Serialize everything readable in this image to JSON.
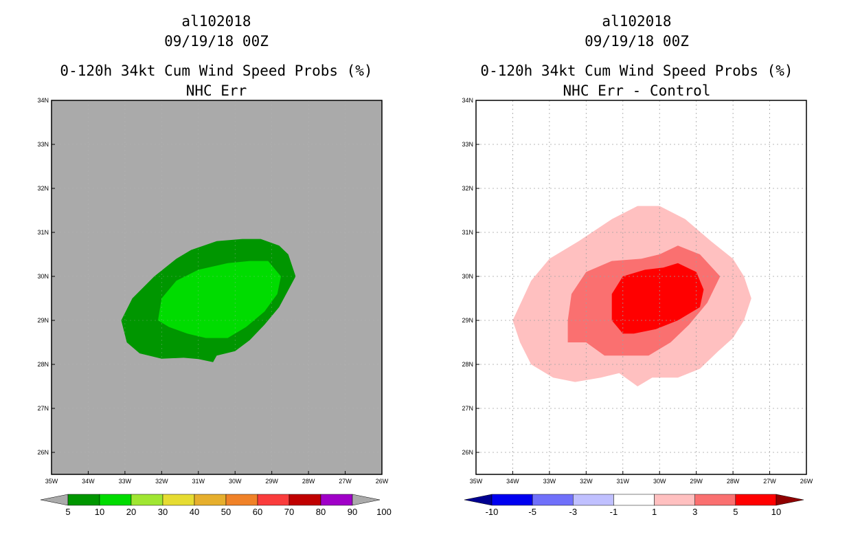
{
  "chart_data": [
    {
      "type": "filled-contour-map",
      "title_lines": [
        "al102018",
        "09/19/18 00Z",
        "0-120h 34kt Cum Wind Speed Probs (%)",
        "NHC Err"
      ],
      "background_color": "#aaaaaa",
      "x_ticks": [
        "35W",
        "34W",
        "33W",
        "32W",
        "31W",
        "30W",
        "29W",
        "28W",
        "27W",
        "26W"
      ],
      "y_ticks": [
        "34N",
        "33N",
        "32N",
        "31N",
        "30N",
        "29N",
        "28N",
        "27N",
        "26N"
      ],
      "lon_range": [
        -35,
        -26
      ],
      "lat_range": [
        25.5,
        34
      ],
      "grid": false,
      "contours": [
        {
          "level": 5,
          "color": "#009600",
          "polygon": [
            [
              -33.1,
              29.0
            ],
            [
              -32.8,
              29.5
            ],
            [
              -32.2,
              30.0
            ],
            [
              -31.6,
              30.4
            ],
            [
              -31.2,
              30.6
            ],
            [
              -30.5,
              30.8
            ],
            [
              -29.8,
              30.85
            ],
            [
              -29.3,
              30.85
            ],
            [
              -28.8,
              30.7
            ],
            [
              -28.55,
              30.5
            ],
            [
              -28.35,
              30.0
            ],
            [
              -28.8,
              29.3
            ],
            [
              -29.2,
              28.9
            ],
            [
              -29.6,
              28.55
            ],
            [
              -30.0,
              28.3
            ],
            [
              -30.5,
              28.2
            ],
            [
              -30.6,
              28.05
            ],
            [
              -31.0,
              28.12
            ],
            [
              -31.4,
              28.15
            ],
            [
              -32.0,
              28.13
            ],
            [
              -32.6,
              28.25
            ],
            [
              -32.95,
              28.5
            ],
            [
              -33.1,
              29.0
            ]
          ]
        },
        {
          "level": 10,
          "color": "#00dc00",
          "polygon": [
            [
              -32.1,
              29.0
            ],
            [
              -32.0,
              29.5
            ],
            [
              -31.6,
              29.9
            ],
            [
              -31.0,
              30.15
            ],
            [
              -30.2,
              30.3
            ],
            [
              -29.6,
              30.35
            ],
            [
              -29.1,
              30.35
            ],
            [
              -28.75,
              30.0
            ],
            [
              -28.85,
              29.6
            ],
            [
              -29.2,
              29.2
            ],
            [
              -29.7,
              28.85
            ],
            [
              -30.2,
              28.6
            ],
            [
              -30.8,
              28.6
            ],
            [
              -31.3,
              28.7
            ],
            [
              -31.8,
              28.85
            ],
            [
              -32.1,
              29.0
            ]
          ]
        }
      ],
      "colorbar": {
        "labels": [
          "5",
          "10",
          "20",
          "30",
          "40",
          "50",
          "60",
          "70",
          "80",
          "90",
          "100"
        ],
        "colors": [
          "#009600",
          "#00dc00",
          "#a0e632",
          "#e6dc32",
          "#e6af2d",
          "#f08228",
          "#fa3c3c",
          "#c00000",
          "#a000c8"
        ],
        "under_color": "#aaaaaa",
        "over_color": "#aaaaaa"
      }
    },
    {
      "type": "filled-contour-map",
      "title_lines": [
        "al102018",
        "09/19/18 00Z",
        "0-120h 34kt Cum Wind Speed Probs (%)",
        "NHC Err - Control"
      ],
      "background_color": "#ffffff",
      "x_ticks": [
        "35W",
        "34W",
        "33W",
        "32W",
        "31W",
        "30W",
        "29W",
        "28W",
        "27W",
        "26W"
      ],
      "y_ticks": [
        "34N",
        "33N",
        "32N",
        "31N",
        "30N",
        "29N",
        "28N",
        "27N",
        "26N"
      ],
      "lon_range": [
        -35,
        -26
      ],
      "lat_range": [
        25.5,
        34
      ],
      "grid": true,
      "contours": [
        {
          "level": 1,
          "color": "#ffc0c0",
          "polygon": [
            [
              -34.0,
              29.0
            ],
            [
              -33.5,
              29.9
            ],
            [
              -33.0,
              30.4
            ],
            [
              -32.2,
              30.8
            ],
            [
              -31.3,
              31.3
            ],
            [
              -30.6,
              31.6
            ],
            [
              -30.0,
              31.6
            ],
            [
              -29.3,
              31.3
            ],
            [
              -28.6,
              30.8
            ],
            [
              -28.0,
              30.4
            ],
            [
              -27.7,
              30.0
            ],
            [
              -27.5,
              29.5
            ],
            [
              -27.7,
              29.0
            ],
            [
              -28.0,
              28.6
            ],
            [
              -28.4,
              28.3
            ],
            [
              -28.9,
              27.9
            ],
            [
              -29.5,
              27.7
            ],
            [
              -30.2,
              27.7
            ],
            [
              -30.6,
              27.5
            ],
            [
              -31.1,
              27.8
            ],
            [
              -31.6,
              27.7
            ],
            [
              -32.3,
              27.6
            ],
            [
              -32.9,
              27.7
            ],
            [
              -33.5,
              28.0
            ],
            [
              -33.8,
              28.5
            ],
            [
              -34.0,
              29.0
            ]
          ]
        },
        {
          "level": 3,
          "color": "#fa7070",
          "polygon": [
            [
              -32.5,
              29.0
            ],
            [
              -32.4,
              29.6
            ],
            [
              -32.0,
              30.1
            ],
            [
              -31.3,
              30.35
            ],
            [
              -30.5,
              30.4
            ],
            [
              -30.0,
              30.5
            ],
            [
              -29.5,
              30.7
            ],
            [
              -28.9,
              30.5
            ],
            [
              -28.35,
              30.0
            ],
            [
              -28.7,
              29.4
            ],
            [
              -29.2,
              28.9
            ],
            [
              -29.7,
              28.5
            ],
            [
              -30.3,
              28.2
            ],
            [
              -30.9,
              28.2
            ],
            [
              -31.5,
              28.2
            ],
            [
              -32.0,
              28.5
            ],
            [
              -32.5,
              28.5
            ],
            [
              -32.5,
              29.0
            ]
          ]
        },
        {
          "level": 5,
          "color": "#ff0000",
          "polygon": [
            [
              -31.3,
              29.0
            ],
            [
              -31.3,
              29.6
            ],
            [
              -31.0,
              30.0
            ],
            [
              -30.4,
              30.15
            ],
            [
              -29.9,
              30.2
            ],
            [
              -29.5,
              30.3
            ],
            [
              -29.0,
              30.1
            ],
            [
              -28.8,
              29.7
            ],
            [
              -28.9,
              29.3
            ],
            [
              -29.5,
              29.0
            ],
            [
              -30.1,
              28.8
            ],
            [
              -30.7,
              28.7
            ],
            [
              -31.0,
              28.7
            ],
            [
              -31.3,
              29.0
            ]
          ]
        }
      ],
      "colorbar": {
        "labels": [
          "-10",
          "-5",
          "-3",
          "-1",
          "1",
          "3",
          "5",
          "10"
        ],
        "colors": [
          "#0000f0",
          "#7070fa",
          "#c0c0ff",
          "#ffffff",
          "#ffc0c0",
          "#fa7070",
          "#ff0000"
        ],
        "under_color": "#000090",
        "over_color": "#900000"
      }
    }
  ]
}
